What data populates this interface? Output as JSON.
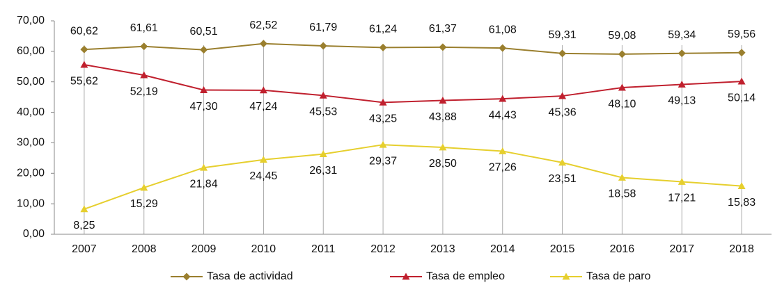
{
  "chart_data": {
    "type": "line",
    "categories": [
      "2007",
      "2008",
      "2009",
      "2010",
      "2011",
      "2012",
      "2013",
      "2014",
      "2015",
      "2016",
      "2017",
      "2018"
    ],
    "series": [
      {
        "name": "Tasa de actividad",
        "color": "#9a7f2e",
        "marker": "diamond",
        "values": [
          60.62,
          61.61,
          60.51,
          62.52,
          61.79,
          61.24,
          61.37,
          61.08,
          59.31,
          59.08,
          59.34,
          59.56
        ],
        "value_labels": [
          "60,62",
          "61,61",
          "60,51",
          "62,52",
          "61,79",
          "61,24",
          "61,37",
          "61,08",
          "59,31",
          "59,08",
          "59,34",
          "59,56"
        ]
      },
      {
        "name": "Tasa de empleo",
        "color": "#c0202e",
        "marker": "triangle",
        "values": [
          55.62,
          52.19,
          47.3,
          47.24,
          45.53,
          43.25,
          43.88,
          44.43,
          45.36,
          48.1,
          49.13,
          50.14
        ],
        "value_labels": [
          "55,62",
          "52,19",
          "47,30",
          "47,24",
          "45,53",
          "43,25",
          "43,88",
          "44,43",
          "45,36",
          "48,10",
          "49,13",
          "50,14"
        ]
      },
      {
        "name": "Tasa de paro",
        "color": "#e6cf2e",
        "marker": "triangle",
        "values": [
          8.25,
          15.29,
          21.84,
          24.45,
          26.31,
          29.37,
          28.5,
          27.26,
          23.51,
          18.58,
          17.21,
          15.83
        ],
        "value_labels": [
          "8,25",
          "15,29",
          "21,84",
          "24,45",
          "26,31",
          "29,37",
          "28,50",
          "27,26",
          "23,51",
          "18,58",
          "17,21",
          "15,83"
        ]
      }
    ],
    "ylim": [
      0,
      70
    ],
    "yticks": [
      {
        "value": 0,
        "label": "0,00"
      },
      {
        "value": 10,
        "label": "10,00"
      },
      {
        "value": 20,
        "label": "20,00"
      },
      {
        "value": 30,
        "label": "30,00"
      },
      {
        "value": 40,
        "label": "40,00"
      },
      {
        "value": 50,
        "label": "50,00"
      },
      {
        "value": 60,
        "label": "60,00"
      },
      {
        "value": 70,
        "label": "70,00"
      }
    ],
    "grid": true,
    "legend": "bottom"
  }
}
